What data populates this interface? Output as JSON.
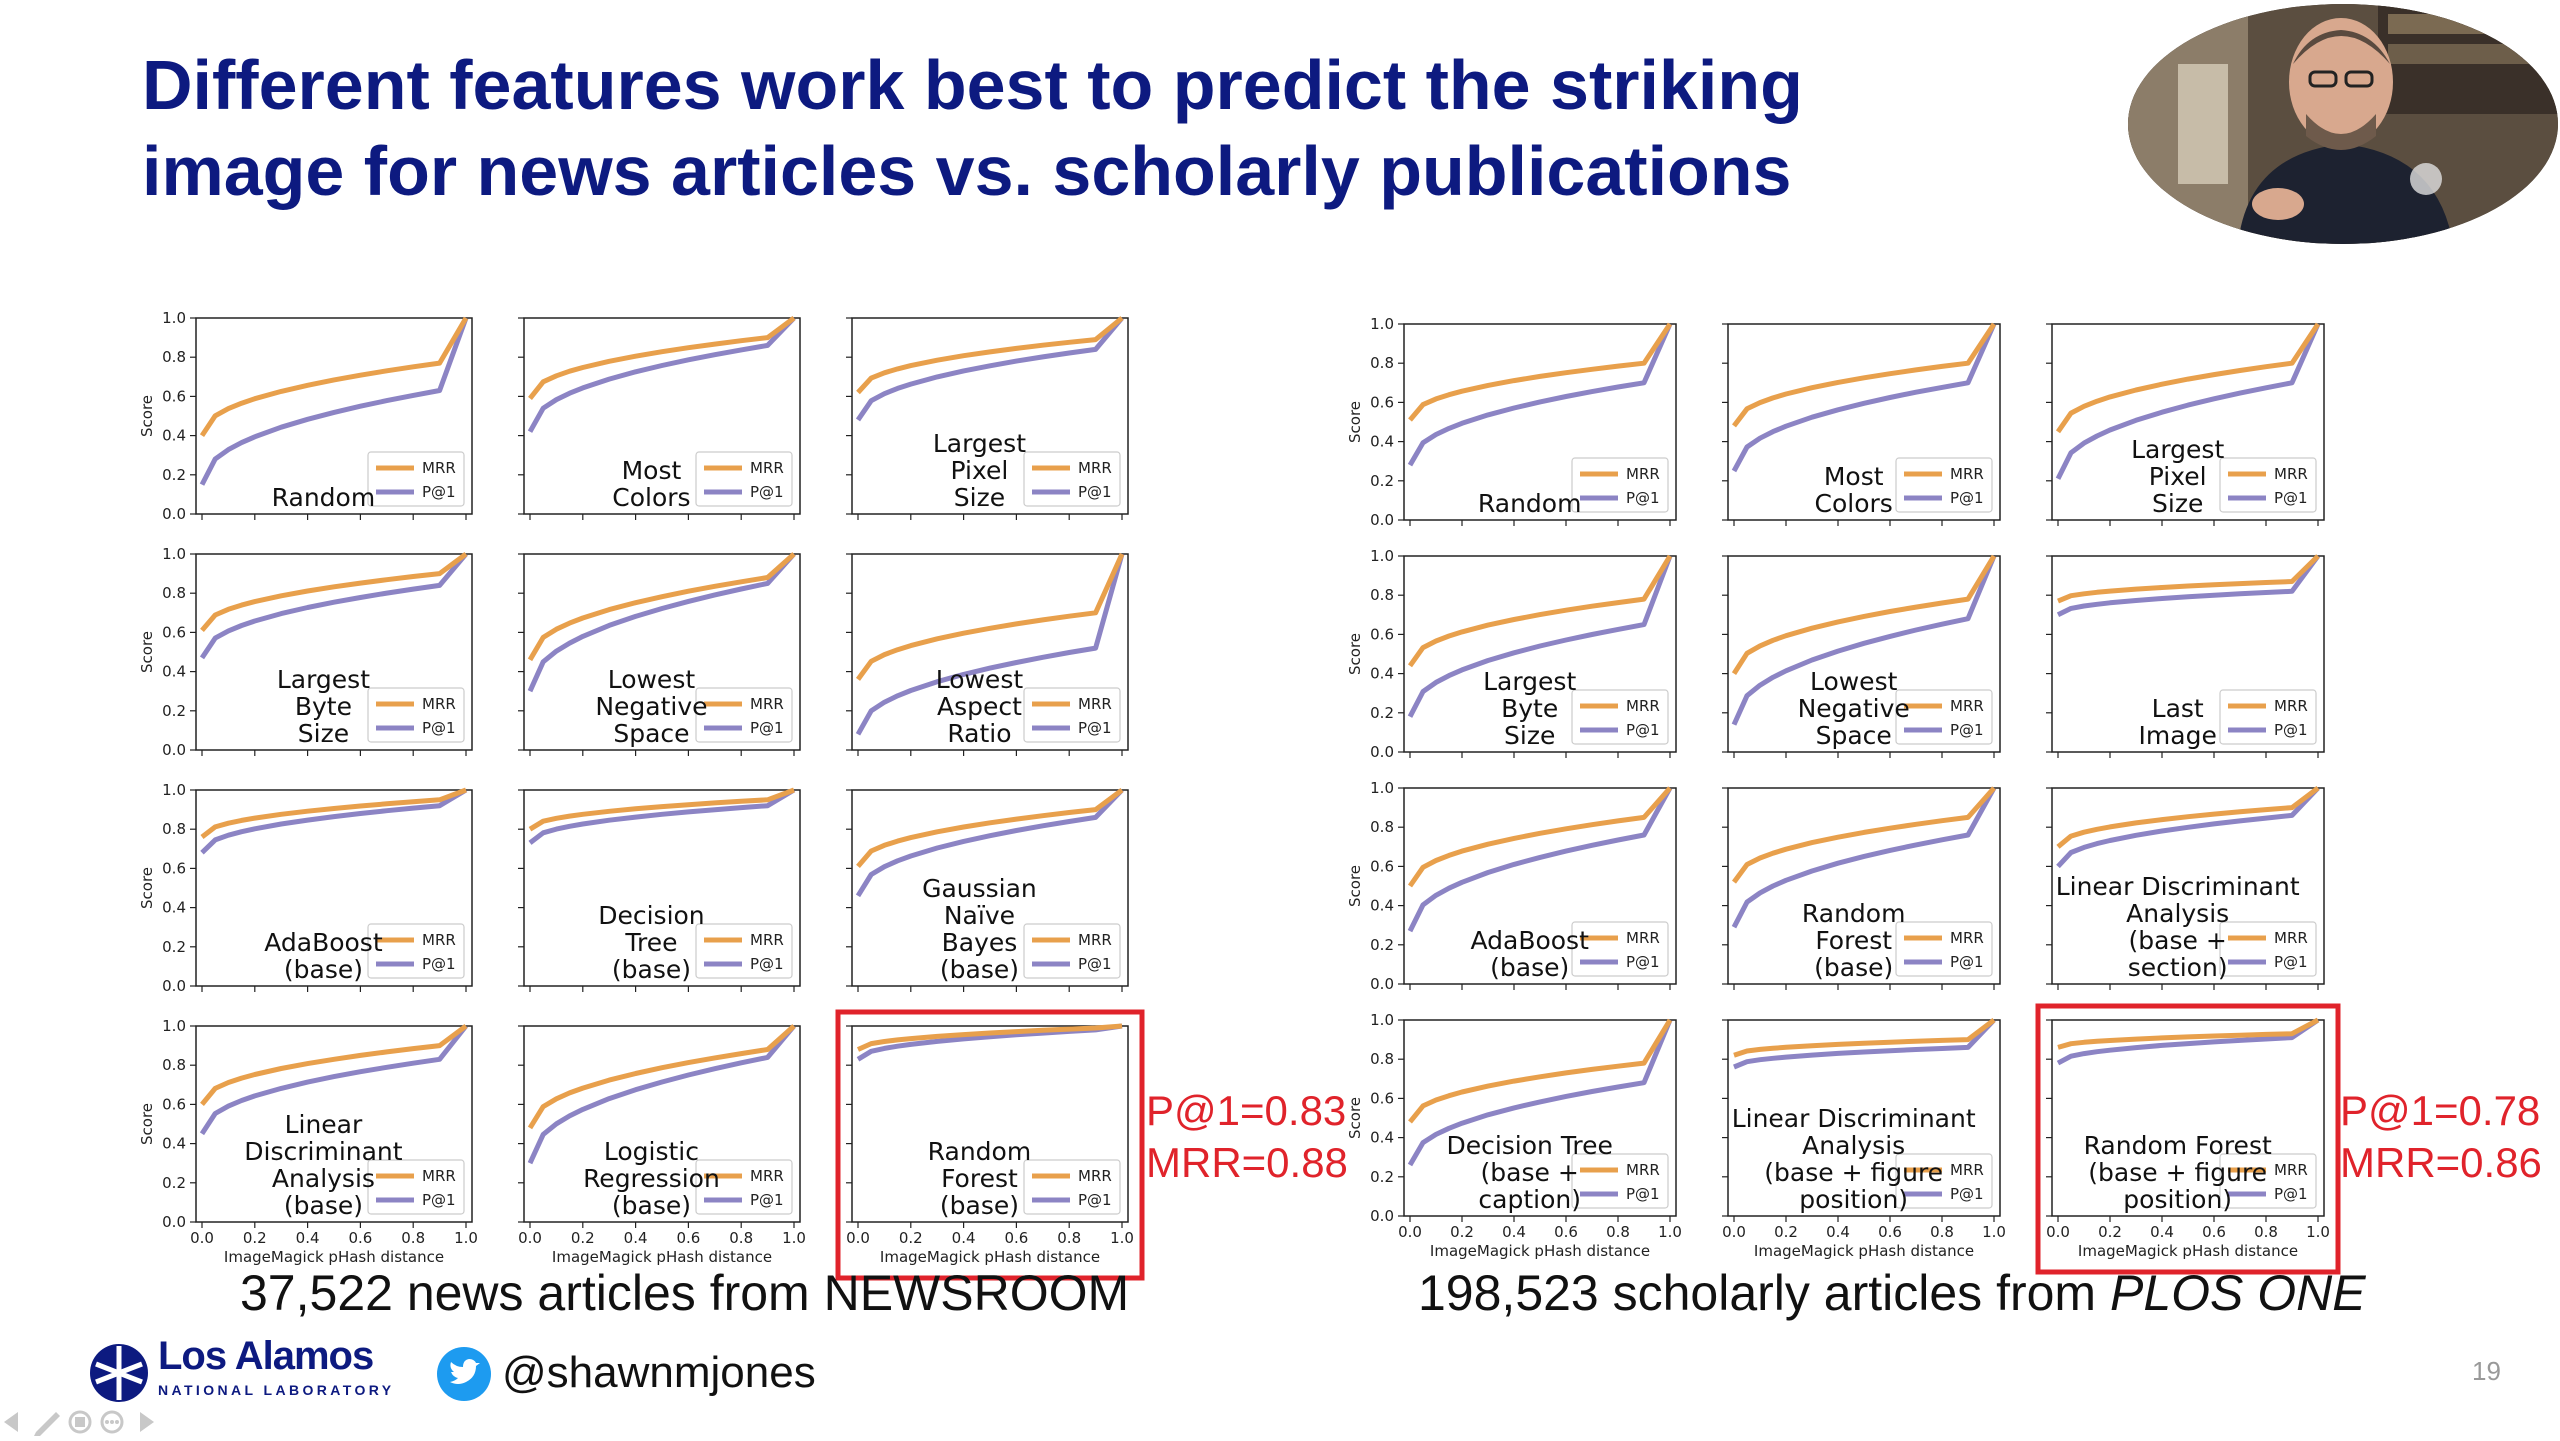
{
  "slide": {
    "title_line1": "Different features work best to predict the striking",
    "title_line2": "image for news articles vs. scholarly publications",
    "caption_left": "37,522 news articles from NEWSROOM",
    "caption_right_prefix": "198,523 scholarly articles from ",
    "caption_right_italic": "PLOS ONE",
    "left_stat_p1": "P@1=0.83",
    "left_stat_mrr": "MRR=0.88",
    "right_stat_p1": "P@1=0.78",
    "right_stat_mrr": "MRR=0.86",
    "logo_name": "Los Alamos",
    "logo_sub": "NATIONAL LABORATORY",
    "twitter_handle": "@shawnmjones",
    "page_number": "19",
    "colors": {
      "title": "#0d1a80",
      "mrr": "#e8a04c",
      "p1": "#8c84c4",
      "highlight": "#e0232b",
      "twitter": "#1d9bf0"
    },
    "icons": [
      "lanl-logo-icon",
      "twitter-bird-icon",
      "prev-slide-icon",
      "pen-icon",
      "slides-icon",
      "more-icon",
      "next-slide-icon",
      "webcam-speaker-image"
    ]
  },
  "chart_data": [
    {
      "group": "news",
      "type": "line",
      "xlabel": "ImageMagick pHash distance",
      "ylabel": "Score",
      "xlim": [
        0,
        1
      ],
      "ylim": [
        0,
        1
      ],
      "xticks": [
        "0.0",
        "0.2",
        "0.4",
        "0.6",
        "0.8",
        "1.0"
      ],
      "yticks": [
        "0.0",
        "0.2",
        "0.4",
        "0.6",
        "0.8",
        "1.0"
      ],
      "legend": [
        "MRR",
        "P@1"
      ],
      "legend_position": "lower-right",
      "panels": [
        {
          "label": [
            "Random"
          ],
          "mrr_start": 0.4,
          "mrr_knee": 0.77,
          "p1_start": 0.15,
          "p1_knee": 0.63
        },
        {
          "label": [
            "Most",
            "Colors"
          ],
          "mrr_start": 0.59,
          "mrr_knee": 0.9,
          "p1_start": 0.42,
          "p1_knee": 0.86
        },
        {
          "label": [
            "Largest",
            "Pixel",
            "Size"
          ],
          "mrr_start": 0.62,
          "mrr_knee": 0.89,
          "p1_start": 0.48,
          "p1_knee": 0.84
        },
        {
          "label": [
            "Largest",
            "Byte",
            "Size"
          ],
          "mrr_start": 0.61,
          "mrr_knee": 0.9,
          "p1_start": 0.47,
          "p1_knee": 0.84
        },
        {
          "label": [
            "Lowest",
            "Negative",
            "Space"
          ],
          "mrr_start": 0.46,
          "mrr_knee": 0.88,
          "p1_start": 0.3,
          "p1_knee": 0.85
        },
        {
          "label": [
            "Lowest",
            "Aspect",
            "Ratio"
          ],
          "mrr_start": 0.36,
          "mrr_knee": 0.7,
          "p1_start": 0.08,
          "p1_knee": 0.52
        },
        {
          "label": [
            "AdaBoost",
            "(base)"
          ],
          "mrr_start": 0.76,
          "mrr_knee": 0.95,
          "p1_start": 0.68,
          "p1_knee": 0.92
        },
        {
          "label": [
            "Decision",
            "Tree",
            "(base)"
          ],
          "mrr_start": 0.8,
          "mrr_knee": 0.95,
          "p1_start": 0.73,
          "p1_knee": 0.92
        },
        {
          "label": [
            "Gaussian",
            "Naïve",
            "Bayes",
            "(base)"
          ],
          "mrr_start": 0.61,
          "mrr_knee": 0.9,
          "p1_start": 0.46,
          "p1_knee": 0.86
        },
        {
          "label": [
            "Linear",
            "Discriminant",
            "Analysis",
            "(base)"
          ],
          "mrr_start": 0.6,
          "mrr_knee": 0.9,
          "p1_start": 0.45,
          "p1_knee": 0.83
        },
        {
          "label": [
            "Logistic",
            "Regression",
            "(base)"
          ],
          "mrr_start": 0.48,
          "mrr_knee": 0.88,
          "p1_start": 0.3,
          "p1_knee": 0.84
        },
        {
          "label": [
            "Random",
            "Forest",
            "(base)"
          ],
          "mrr_start": 0.88,
          "mrr_knee": 0.99,
          "p1_start": 0.83,
          "p1_knee": 0.98,
          "highlight": true
        }
      ]
    },
    {
      "group": "plos_one",
      "type": "line",
      "xlabel": "ImageMagick pHash distance",
      "ylabel": "Score",
      "xlim": [
        0,
        1
      ],
      "ylim": [
        0,
        1
      ],
      "xticks": [
        "0.0",
        "0.2",
        "0.4",
        "0.6",
        "0.8",
        "1.0"
      ],
      "yticks": [
        "0.0",
        "0.2",
        "0.4",
        "0.6",
        "0.8",
        "1.0"
      ],
      "legend": [
        "MRR",
        "P@1"
      ],
      "legend_position": "lower-right",
      "panels": [
        {
          "label": [
            "Random"
          ],
          "mrr_start": 0.51,
          "mrr_knee": 0.8,
          "p1_start": 0.28,
          "p1_knee": 0.7
        },
        {
          "label": [
            "Most",
            "Colors"
          ],
          "mrr_start": 0.48,
          "mrr_knee": 0.8,
          "p1_start": 0.25,
          "p1_knee": 0.7
        },
        {
          "label": [
            "Largest",
            "Pixel",
            "Size"
          ],
          "mrr_start": 0.45,
          "mrr_knee": 0.8,
          "p1_start": 0.21,
          "p1_knee": 0.7
        },
        {
          "label": [
            "Largest",
            "Byte",
            "Size"
          ],
          "mrr_start": 0.44,
          "mrr_knee": 0.78,
          "p1_start": 0.18,
          "p1_knee": 0.65
        },
        {
          "label": [
            "Lowest",
            "Negative",
            "Space"
          ],
          "mrr_start": 0.4,
          "mrr_knee": 0.78,
          "p1_start": 0.14,
          "p1_knee": 0.68
        },
        {
          "label": [
            "Last",
            "Image"
          ],
          "mrr_start": 0.77,
          "mrr_knee": 0.87,
          "p1_start": 0.7,
          "p1_knee": 0.82
        },
        {
          "label": [
            "AdaBoost",
            "(base)"
          ],
          "mrr_start": 0.5,
          "mrr_knee": 0.85,
          "p1_start": 0.27,
          "p1_knee": 0.76
        },
        {
          "label": [
            "Random",
            "Forest",
            "(base)"
          ],
          "mrr_start": 0.52,
          "mrr_knee": 0.85,
          "p1_start": 0.29,
          "p1_knee": 0.76
        },
        {
          "label": [
            "Linear Discriminant",
            "Analysis",
            "(base +",
            "section)"
          ],
          "mrr_start": 0.7,
          "mrr_knee": 0.9,
          "p1_start": 0.6,
          "p1_knee": 0.86
        },
        {
          "label": [
            "Decision Tree",
            "(base +",
            "caption)"
          ],
          "mrr_start": 0.48,
          "mrr_knee": 0.78,
          "p1_start": 0.26,
          "p1_knee": 0.68
        },
        {
          "label": [
            "Linear Discriminant",
            "Analysis",
            "(base + figure",
            "position)"
          ],
          "mrr_start": 0.82,
          "mrr_knee": 0.9,
          "p1_start": 0.76,
          "p1_knee": 0.86
        },
        {
          "label": [
            "Random Forest",
            "(base + figure",
            "position)"
          ],
          "mrr_start": 0.86,
          "mrr_knee": 0.93,
          "p1_start": 0.78,
          "p1_knee": 0.91,
          "highlight": true
        }
      ]
    }
  ]
}
